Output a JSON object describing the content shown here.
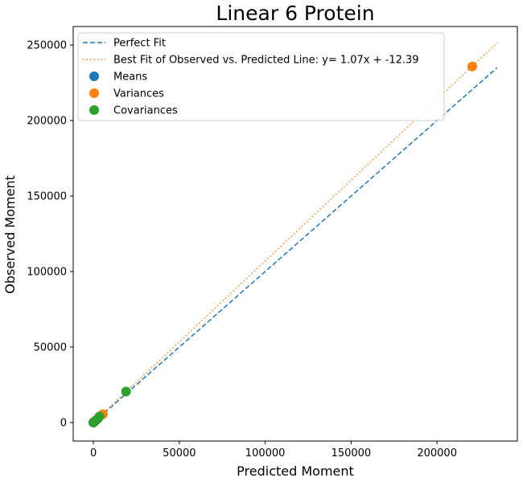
{
  "chart_data": {
    "type": "scatter",
    "title": "Linear 6 Protein",
    "xlabel": "Predicted Moment",
    "ylabel": "Observed Moment",
    "xlim": [
      -11750,
      246750
    ],
    "ylim": [
      -12250,
      262250
    ],
    "x_ticks": [
      0,
      50000,
      100000,
      150000,
      200000
    ],
    "y_ticks": [
      0,
      50000,
      100000,
      150000,
      200000,
      250000
    ],
    "grid": false,
    "legend_placement": "top-left",
    "lines": [
      {
        "name": "Perfect Fit",
        "style": "dashed",
        "color": "#1f77b4",
        "x": [
          0,
          235000
        ],
        "y": [
          0,
          235000
        ]
      },
      {
        "name": "Best Fit of Observed vs. Predicted Line: y= 1.07x + -12.39",
        "style": "dotted",
        "color": "#ff7f0e",
        "x": [
          0,
          235000
        ],
        "y": [
          -12.39,
          251437.61
        ]
      }
    ],
    "series": [
      {
        "name": "Means",
        "color": "#1f77b4",
        "x": [
          0,
          100,
          200
        ],
        "y": [
          0,
          100,
          200
        ]
      },
      {
        "name": "Variances",
        "color": "#ff7f0e",
        "x": [
          800,
          5500,
          220500
        ],
        "y": [
          800,
          5500,
          235800
        ]
      },
      {
        "name": "Covariances",
        "color": "#2ca02c",
        "x": [
          0,
          500,
          1000,
          1500,
          2500,
          3500,
          19000
        ],
        "y": [
          0,
          500,
          1000,
          1500,
          2500,
          4000,
          20500
        ]
      }
    ]
  }
}
